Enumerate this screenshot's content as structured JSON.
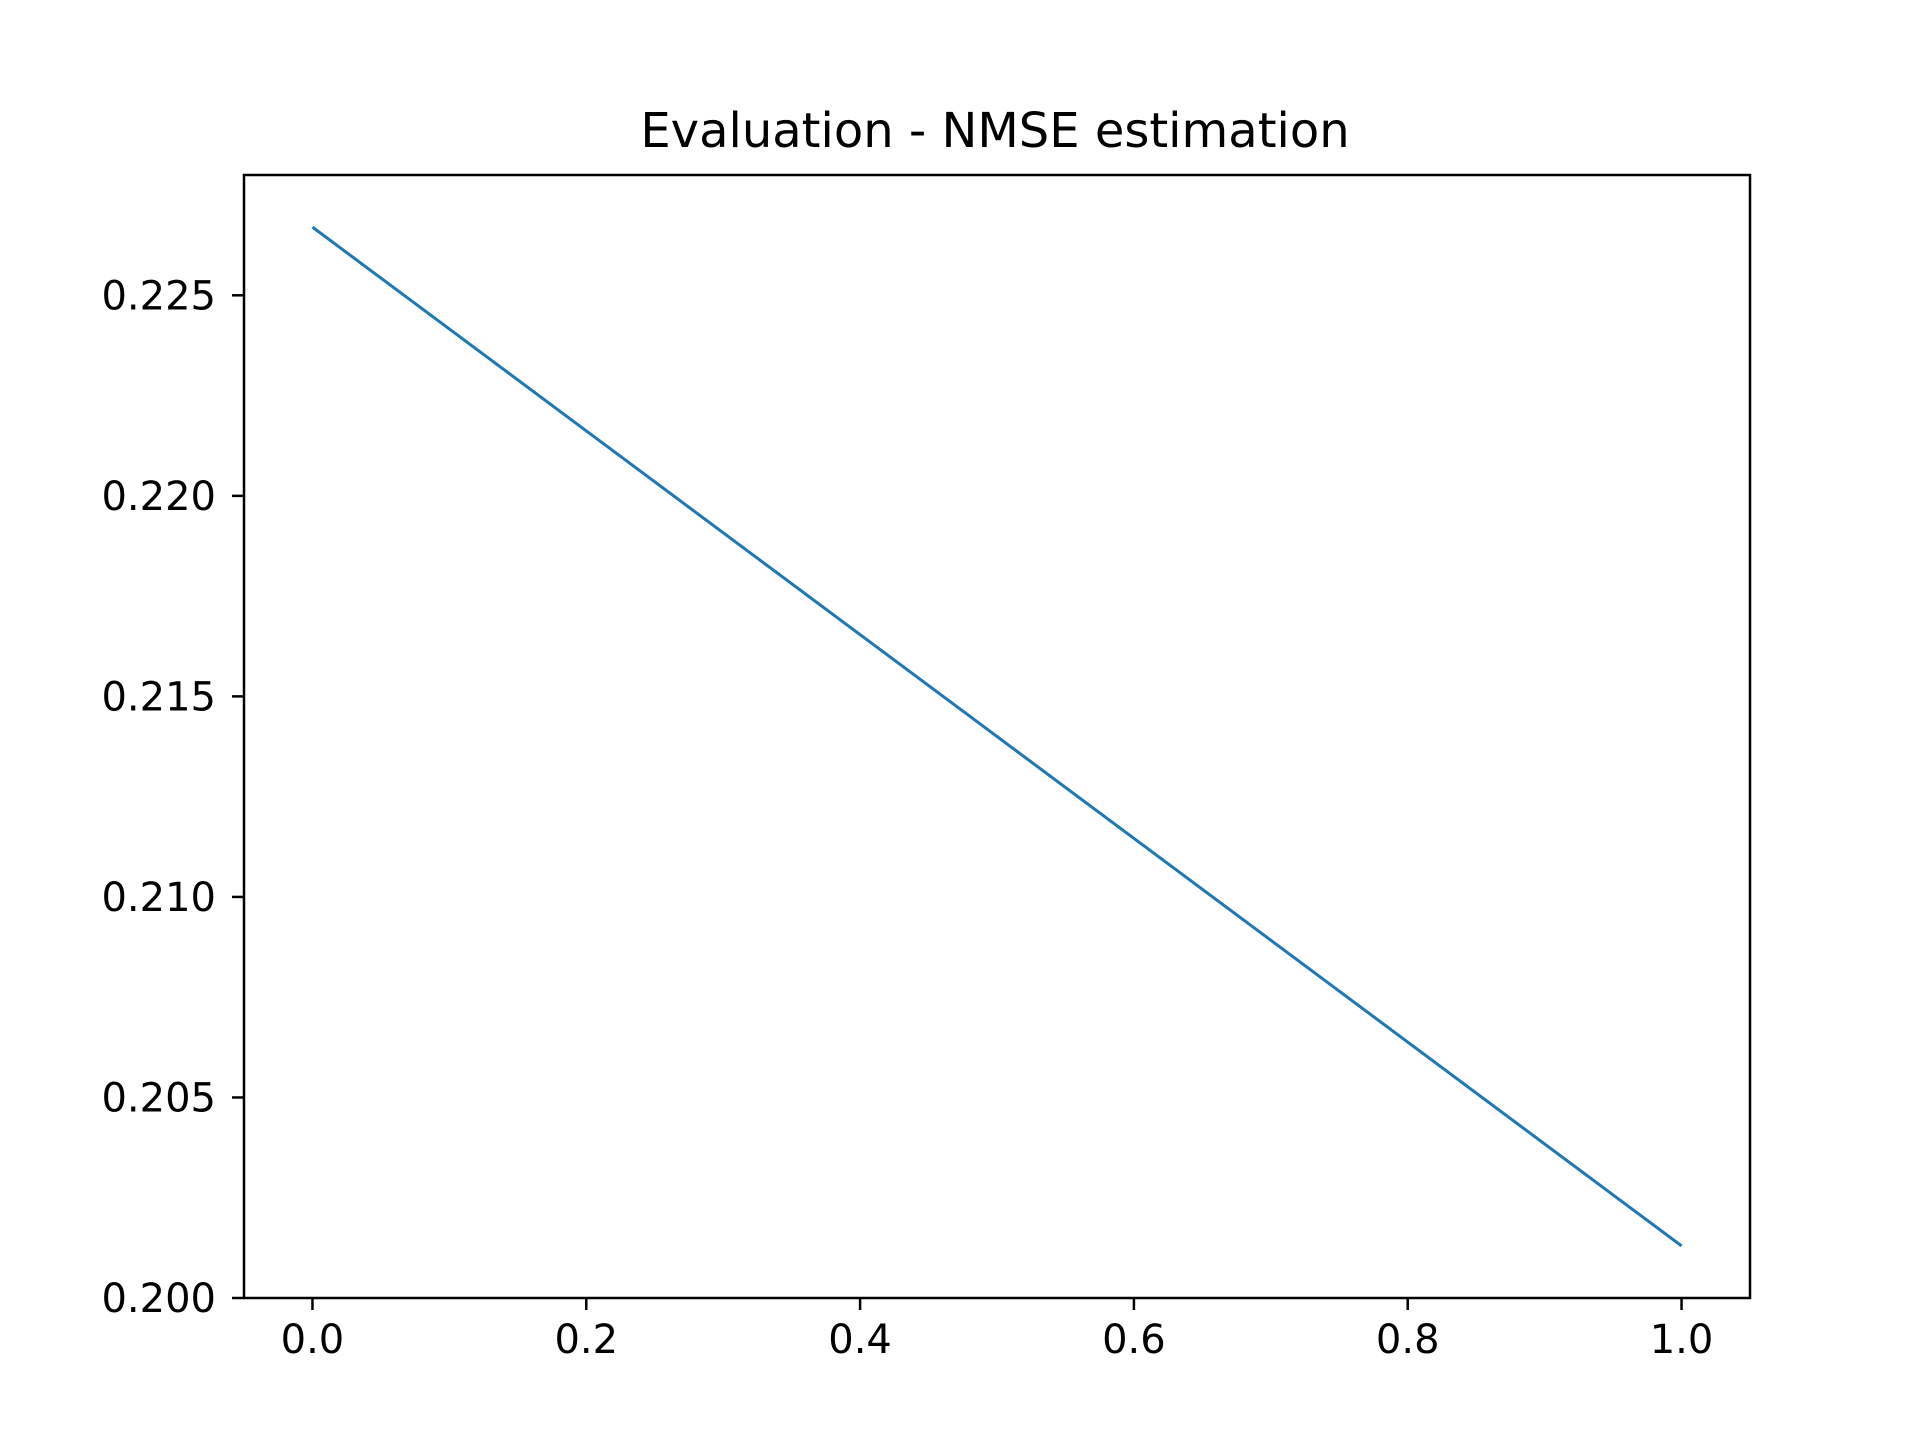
{
  "chart_data": {
    "type": "line",
    "title": "Evaluation - NMSE estimation",
    "xlabel": "",
    "ylabel": "",
    "x": [
      0.0,
      1.0
    ],
    "series": [
      {
        "values": [
          0.2267,
          0.2013
        ],
        "color": "#1f77b4"
      }
    ],
    "xlim": [
      -0.05,
      1.05
    ],
    "ylim": [
      0.2,
      0.228
    ],
    "xticks": [
      0.0,
      0.2,
      0.4,
      0.6,
      0.8,
      1.0
    ],
    "xtick_labels": [
      "0.0",
      "0.2",
      "0.4",
      "0.6",
      "0.8",
      "1.0"
    ],
    "yticks": [
      0.2,
      0.205,
      0.21,
      0.215,
      0.22,
      0.225
    ],
    "ytick_labels": [
      "0.200",
      "0.205",
      "0.210",
      "0.215",
      "0.220",
      "0.225"
    ],
    "grid": false,
    "legend": "none"
  }
}
